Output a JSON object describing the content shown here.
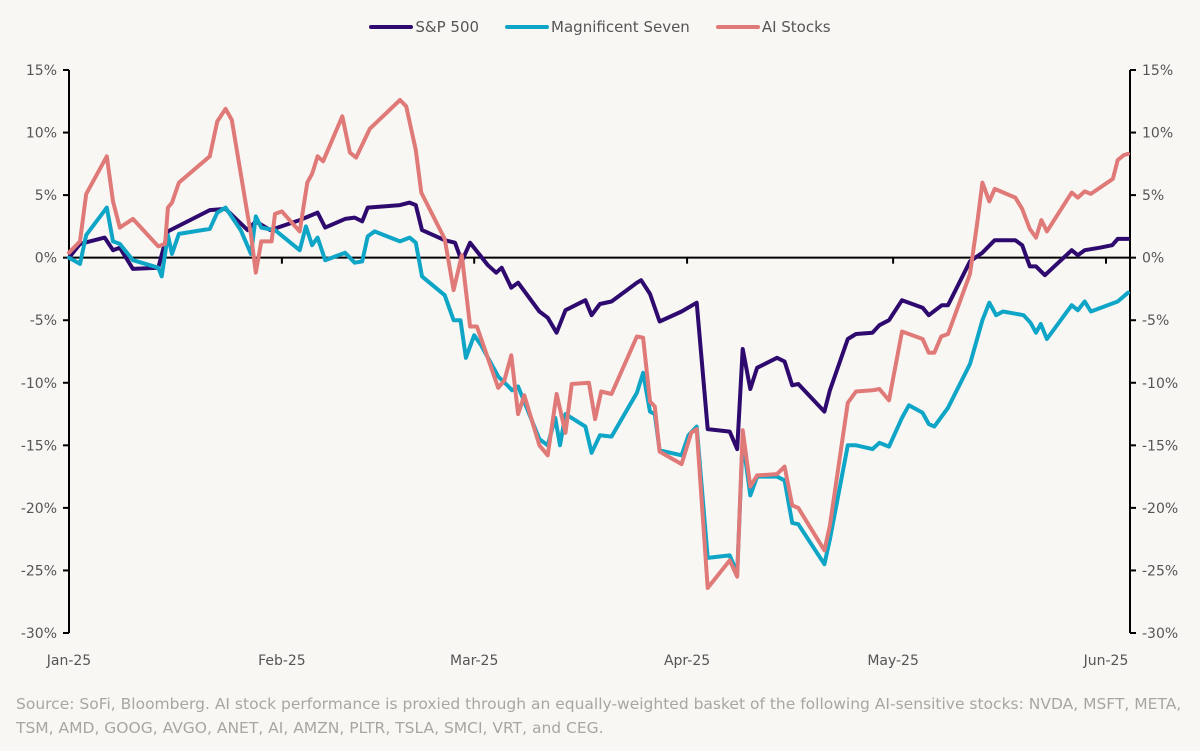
{
  "chart_data": {
    "type": "line",
    "title": "",
    "xlabel": "",
    "ylabel": "",
    "x_unit": "days since Jan 1, 2025",
    "x_range": [
      0,
      154
    ],
    "ylim": [
      -30,
      15
    ],
    "yticks": [
      15,
      10,
      5,
      0,
      -5,
      -10,
      -15,
      -20,
      -25,
      -30
    ],
    "ytick_labels": [
      "15%",
      "10%",
      "5%",
      "0%",
      "-5%",
      "-10%",
      "-15%",
      "-20%",
      "-25%",
      "-30%"
    ],
    "xticks": [
      0,
      31,
      59,
      90,
      120,
      151
    ],
    "xtick_labels": [
      "Jan-25",
      "Feb-25",
      "Mar-25",
      "Apr-25",
      "May-25",
      "Jun-25"
    ],
    "secondary_y_axis": true,
    "grid": false,
    "zero_line": true,
    "legend_position": "top-center",
    "series": [
      {
        "name": "S&P 500",
        "color": "#2e0a6e",
        "points": [
          [
            0,
            0
          ],
          [
            1.6,
            1.1
          ],
          [
            5.2,
            1.6
          ],
          [
            6.4,
            0.6
          ],
          [
            7.4,
            0.8
          ],
          [
            9.3,
            -0.9
          ],
          [
            13,
            -0.8
          ],
          [
            14.4,
            2.1
          ],
          [
            20.5,
            3.8
          ],
          [
            22.8,
            3.9
          ],
          [
            26,
            2.2
          ],
          [
            27.2,
            2.9
          ],
          [
            29.3,
            2.2
          ],
          [
            33.6,
            3.0
          ],
          [
            36.2,
            3.6
          ],
          [
            37.3,
            2.4
          ],
          [
            40.2,
            3.1
          ],
          [
            41.6,
            3.2
          ],
          [
            42.7,
            2.9
          ],
          [
            43.5,
            4.0
          ],
          [
            48.2,
            4.2
          ],
          [
            49.6,
            4.4
          ],
          [
            50.5,
            4.2
          ],
          [
            51.4,
            2.2
          ],
          [
            54.7,
            1.4
          ],
          [
            56.2,
            1.2
          ],
          [
            57.2,
            -0.3
          ],
          [
            58.4,
            1.2
          ],
          [
            61,
            -0.6
          ],
          [
            62.2,
            -1.2
          ],
          [
            63,
            -0.8
          ],
          [
            64.4,
            -2.4
          ],
          [
            65.4,
            -2.0
          ],
          [
            68.5,
            -4.3
          ],
          [
            69.7,
            -4.8
          ],
          [
            71,
            -6.0
          ],
          [
            72.3,
            -4.2
          ],
          [
            75.2,
            -3.4
          ],
          [
            76.1,
            -4.6
          ],
          [
            77.3,
            -3.7
          ],
          [
            79,
            -3.5
          ],
          [
            82.7,
            -2.0
          ],
          [
            83.3,
            -1.8
          ],
          [
            84.6,
            -2.9
          ],
          [
            86,
            -5.1
          ],
          [
            89.2,
            -4.3
          ],
          [
            91.4,
            -3.6
          ],
          [
            93,
            -13.7
          ],
          [
            96.2,
            -13.9
          ],
          [
            97.3,
            -15.3
          ],
          [
            98.1,
            -7.3
          ],
          [
            99.2,
            -10.5
          ],
          [
            100.2,
            -8.8
          ],
          [
            103.1,
            -8.0
          ],
          [
            104.2,
            -8.3
          ],
          [
            105.3,
            -10.2
          ],
          [
            106.2,
            -10.1
          ],
          [
            110,
            -12.3
          ],
          [
            110.8,
            -10.6
          ],
          [
            113.4,
            -6.5
          ],
          [
            114.6,
            -6.1
          ],
          [
            117,
            -6.0
          ],
          [
            118,
            -5.4
          ],
          [
            119.4,
            -5.0
          ],
          [
            121.3,
            -3.4
          ],
          [
            124.3,
            -4.0
          ],
          [
            125.2,
            -4.6
          ],
          [
            127.1,
            -3.8
          ],
          [
            128,
            -3.8
          ],
          [
            131.2,
            -0.3
          ],
          [
            133,
            0.4
          ],
          [
            134.8,
            1.4
          ],
          [
            137.8,
            1.4
          ],
          [
            138.8,
            1.0
          ],
          [
            139.9,
            -0.7
          ],
          [
            140.8,
            -0.7
          ],
          [
            142.1,
            -1.4
          ],
          [
            146,
            0.6
          ],
          [
            146.9,
            0.2
          ],
          [
            147.9,
            0.6
          ],
          [
            150.1,
            0.8
          ],
          [
            151.9,
            1.0
          ],
          [
            152.7,
            1.5
          ],
          [
            154.2,
            1.5
          ]
        ]
      },
      {
        "name": "Magnificent Seven",
        "color": "#0ea5c6",
        "points": [
          [
            0,
            0
          ],
          [
            1.6,
            -0.5
          ],
          [
            2.5,
            1.8
          ],
          [
            5.5,
            4.0
          ],
          [
            6.4,
            1.3
          ],
          [
            7.4,
            1.1
          ],
          [
            9.3,
            -0.2
          ],
          [
            13,
            -0.8
          ],
          [
            13.5,
            -1.5
          ],
          [
            14.4,
            1.8
          ],
          [
            15,
            0.3
          ],
          [
            16,
            1.9
          ],
          [
            20.5,
            2.3
          ],
          [
            21.6,
            3.6
          ],
          [
            22.8,
            4.0
          ],
          [
            25,
            2.2
          ],
          [
            26.5,
            0.3
          ],
          [
            27.2,
            3.3
          ],
          [
            28,
            2.4
          ],
          [
            30,
            2.2
          ],
          [
            33.6,
            0.6
          ],
          [
            34.5,
            2.5
          ],
          [
            35.4,
            1.0
          ],
          [
            36.2,
            1.6
          ],
          [
            37.3,
            -0.2
          ],
          [
            40.2,
            0.4
          ],
          [
            41.6,
            -0.4
          ],
          [
            42.7,
            -0.3
          ],
          [
            43.5,
            1.7
          ],
          [
            44.5,
            2.1
          ],
          [
            48.2,
            1.3
          ],
          [
            49.6,
            1.6
          ],
          [
            50.5,
            1.2
          ],
          [
            51.4,
            -1.5
          ],
          [
            54.7,
            -3.0
          ],
          [
            56,
            -5.0
          ],
          [
            57,
            -5.0
          ],
          [
            57.8,
            -8.0
          ],
          [
            59,
            -6.2
          ],
          [
            60,
            -7.0
          ],
          [
            62.5,
            -9.5
          ],
          [
            64,
            -10.3
          ],
          [
            64.5,
            -10.6
          ],
          [
            65.4,
            -10.3
          ],
          [
            68.5,
            -14.5
          ],
          [
            69.7,
            -15.0
          ],
          [
            70.8,
            -12.8
          ],
          [
            71.5,
            -15.0
          ],
          [
            72.3,
            -12.5
          ],
          [
            75.2,
            -13.5
          ],
          [
            76.1,
            -15.6
          ],
          [
            77.3,
            -14.2
          ],
          [
            79,
            -14.3
          ],
          [
            82.7,
            -10.8
          ],
          [
            83.6,
            -9.2
          ],
          [
            84.6,
            -12.3
          ],
          [
            85.3,
            -12.5
          ],
          [
            86,
            -15.4
          ],
          [
            89.2,
            -15.8
          ],
          [
            90.2,
            -14.2
          ],
          [
            91.4,
            -13.5
          ],
          [
            93,
            -24.0
          ],
          [
            96.2,
            -23.8
          ],
          [
            97.3,
            -25.2
          ],
          [
            98.1,
            -14.5
          ],
          [
            99.2,
            -19.0
          ],
          [
            100.2,
            -17.5
          ],
          [
            103.1,
            -17.5
          ],
          [
            104.2,
            -17.8
          ],
          [
            105.3,
            -21.2
          ],
          [
            106.2,
            -21.3
          ],
          [
            110,
            -24.5
          ],
          [
            110.8,
            -22.5
          ],
          [
            113.4,
            -15.0
          ],
          [
            114.6,
            -15.0
          ],
          [
            117,
            -15.3
          ],
          [
            118,
            -14.8
          ],
          [
            119.4,
            -15.1
          ],
          [
            121.3,
            -12.8
          ],
          [
            122.3,
            -11.8
          ],
          [
            124.3,
            -12.4
          ],
          [
            125.2,
            -13.3
          ],
          [
            126,
            -13.5
          ],
          [
            128,
            -12.0
          ],
          [
            131.2,
            -8.5
          ],
          [
            133,
            -5.0
          ],
          [
            134,
            -3.6
          ],
          [
            135,
            -4.6
          ],
          [
            136,
            -4.3
          ],
          [
            139,
            -4.6
          ],
          [
            140,
            -5.2
          ],
          [
            140.8,
            -6.0
          ],
          [
            141.5,
            -5.3
          ],
          [
            142.4,
            -6.5
          ],
          [
            146,
            -3.8
          ],
          [
            146.9,
            -4.2
          ],
          [
            147.9,
            -3.5
          ],
          [
            148.8,
            -4.3
          ],
          [
            152.7,
            -3.5
          ],
          [
            154.2,
            -2.8
          ]
        ]
      },
      {
        "name": "AI Stocks",
        "color": "#e07a78",
        "points": [
          [
            0,
            0.4
          ],
          [
            1.6,
            1.3
          ],
          [
            2.5,
            5.1
          ],
          [
            5.5,
            8.1
          ],
          [
            6.4,
            4.5
          ],
          [
            7.4,
            2.4
          ],
          [
            9.3,
            3.1
          ],
          [
            13,
            0.9
          ],
          [
            14,
            1.1
          ],
          [
            14.4,
            4.0
          ],
          [
            15,
            4.4
          ],
          [
            16,
            6.0
          ],
          [
            20.5,
            8.1
          ],
          [
            21.6,
            10.9
          ],
          [
            22.8,
            11.9
          ],
          [
            23.7,
            11.0
          ],
          [
            26.5,
            1.8
          ],
          [
            27.2,
            -1.2
          ],
          [
            28,
            1.3
          ],
          [
            29.5,
            1.3
          ],
          [
            30,
            3.5
          ],
          [
            31,
            3.7
          ],
          [
            33.6,
            2.1
          ],
          [
            34.7,
            6.0
          ],
          [
            35.4,
            6.7
          ],
          [
            36.2,
            8.1
          ],
          [
            37,
            7.7
          ],
          [
            39.8,
            11.3
          ],
          [
            40.9,
            8.4
          ],
          [
            41.8,
            8.0
          ],
          [
            43.8,
            10.3
          ],
          [
            48.2,
            12.6
          ],
          [
            49.1,
            12.1
          ],
          [
            50.5,
            8.6
          ],
          [
            51.3,
            5.2
          ],
          [
            54.7,
            1.5
          ],
          [
            56.0,
            -2.6
          ],
          [
            57.2,
            0.2
          ],
          [
            58.4,
            -5.5
          ],
          [
            59.4,
            -5.5
          ],
          [
            62.5,
            -10.4
          ],
          [
            63.4,
            -9.8
          ],
          [
            64.4,
            -7.8
          ],
          [
            65.4,
            -12.5
          ],
          [
            66.3,
            -11.0
          ],
          [
            68.5,
            -15.0
          ],
          [
            69.7,
            -15.8
          ],
          [
            71,
            -10.9
          ],
          [
            72.3,
            -14.0
          ],
          [
            73.2,
            -10.1
          ],
          [
            75.7,
            -10.0
          ],
          [
            76.6,
            -12.9
          ],
          [
            77.5,
            -10.7
          ],
          [
            79,
            -10.9
          ],
          [
            82.7,
            -6.3
          ],
          [
            83.6,
            -6.4
          ],
          [
            84.6,
            -11.5
          ],
          [
            85.3,
            -11.9
          ],
          [
            86,
            -15.5
          ],
          [
            89.2,
            -16.5
          ],
          [
            90.6,
            -14.0
          ],
          [
            91.4,
            -13.7
          ],
          [
            93,
            -26.4
          ],
          [
            96.2,
            -24.2
          ],
          [
            97.3,
            -25.5
          ],
          [
            98.1,
            -13.8
          ],
          [
            99.2,
            -18.3
          ],
          [
            100.2,
            -17.4
          ],
          [
            103.1,
            -17.3
          ],
          [
            104.2,
            -16.7
          ],
          [
            105.3,
            -19.8
          ],
          [
            106.2,
            -20.0
          ],
          [
            110,
            -23.4
          ],
          [
            110.8,
            -21.4
          ],
          [
            113.4,
            -11.6
          ],
          [
            114.6,
            -10.7
          ],
          [
            117,
            -10.6
          ],
          [
            118,
            -10.5
          ],
          [
            119.4,
            -11.4
          ],
          [
            121.3,
            -5.9
          ],
          [
            124.3,
            -6.5
          ],
          [
            125.2,
            -7.6
          ],
          [
            126,
            -7.6
          ],
          [
            127,
            -6.3
          ],
          [
            128,
            -6.1
          ],
          [
            131.2,
            -1.3
          ],
          [
            132.3,
            3.0
          ],
          [
            133,
            6.0
          ],
          [
            134,
            4.5
          ],
          [
            134.8,
            5.5
          ],
          [
            137.8,
            4.8
          ],
          [
            138.8,
            3.9
          ],
          [
            139.9,
            2.3
          ],
          [
            140.8,
            1.6
          ],
          [
            141.6,
            3.0
          ],
          [
            142.4,
            2.1
          ],
          [
            146,
            5.2
          ],
          [
            146.9,
            4.8
          ],
          [
            147.9,
            5.3
          ],
          [
            148.8,
            5.1
          ],
          [
            152,
            6.3
          ],
          [
            152.7,
            7.8
          ],
          [
            153.6,
            8.2
          ],
          [
            154.2,
            8.3
          ]
        ]
      }
    ]
  },
  "legend": [
    {
      "label": "S&P 500",
      "color": "#2e0a6e"
    },
    {
      "label": "Magnificent Seven",
      "color": "#0ea5c6"
    },
    {
      "label": "AI Stocks",
      "color": "#e07a78"
    }
  ],
  "source_note": "Source: SoFi, Bloomberg. AI stock performance is proxied through an equally-weighted basket of the following AI-sensitive stocks: NVDA, MSFT, META, TSM, AMD, GOOG, AVGO, ANET, AI, AMZN, PLTR, TSLA, SMCI, VRT, and CEG."
}
